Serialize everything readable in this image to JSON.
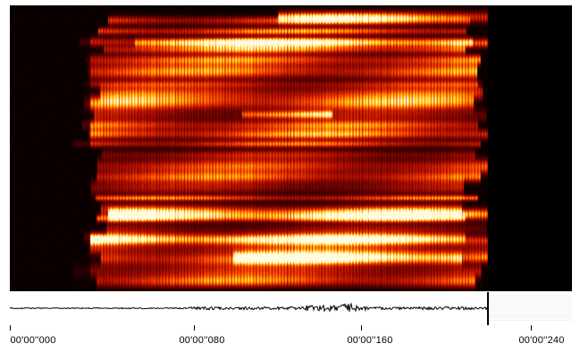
{
  "colors": {
    "background": "#ffffff",
    "spectrogram_cmap": [
      "#000000",
      "#5a0000",
      "#b31000",
      "#ff4a00",
      "#ffd000",
      "#fffbe0"
    ],
    "unrecorded": "#000000",
    "waveform": "#000000",
    "cursor": "#000000"
  },
  "spectrogram": {
    "recorded_fraction": 0.85
  },
  "timeline": {
    "ticks": [
      {
        "label": "00'00''000"
      },
      {
        "label": "00'00''080"
      },
      {
        "label": "00'00''160"
      },
      {
        "label": "00'00''240"
      }
    ]
  },
  "playback": {
    "cursor_position_fraction": 0.85
  }
}
